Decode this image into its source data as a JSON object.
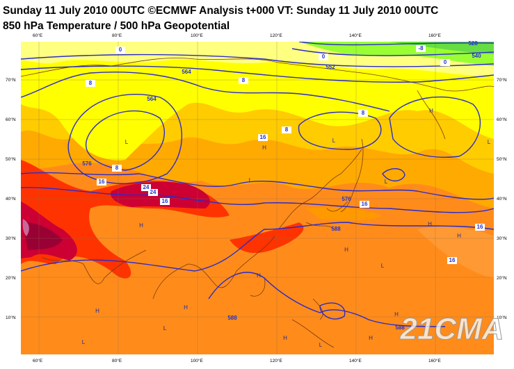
{
  "header": {
    "title": "Sunday 11 July 2010 00UTC ©ECMWF Analysis t+000 VT: Sunday 11 July 2010 00UTC",
    "subtitle": "850 hPa Temperature / 500 hPa Geopotential"
  },
  "map": {
    "longitude_labels": [
      "60°E",
      "80°E",
      "100°E",
      "120°E",
      "140°E",
      "160°E"
    ],
    "latitude_labels": [
      "70°N",
      "60°N",
      "50°N",
      "40°N",
      "30°N",
      "20°N",
      "10°N"
    ],
    "contour_labels": [
      "0",
      "0",
      "-8",
      "0",
      "8",
      "8",
      "8",
      "8",
      "8",
      "16",
      "16",
      "24",
      "24",
      "16",
      "16",
      "16",
      "16",
      "528",
      "540",
      "552",
      "564",
      "564",
      "576",
      "576",
      "588",
      "588",
      "588"
    ],
    "pressure_centers": [
      "L",
      "L",
      "L",
      "H",
      "L",
      "H",
      "H",
      "H",
      "H",
      "H",
      "H",
      "L",
      "H",
      "H",
      "L",
      "L",
      "H",
      "L",
      "H",
      "H",
      "L"
    ],
    "watermark": "21CMA"
  }
}
